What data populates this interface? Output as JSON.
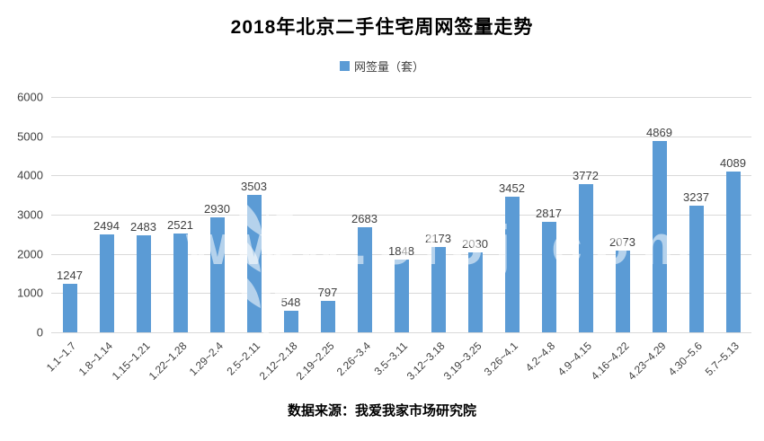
{
  "title": "2018年北京二手住宅周网签量走势",
  "legend": {
    "label": "网签量（套）",
    "color": "#5B9BD5"
  },
  "footer": {
    "text": "数据来源：我爱我家市场研究院"
  },
  "watermark": {
    "text": "www.5i5j.com"
  },
  "colors": {
    "bar": "#5B9BD5",
    "gridline": "#D9D9D9",
    "label_text": "#404040"
  },
  "chart_data": {
    "type": "bar",
    "title": "2018年北京二手住宅周网签量走势",
    "series_name": "网签量（套）",
    "categories": [
      "1.1~1.7",
      "1.8~1.14",
      "1.15~1.21",
      "1.22~1.28",
      "1.29~2.4",
      "2.5~2.11",
      "2.12~2.18",
      "2.19~2.25",
      "2.26~3.4",
      "3.5~3.11",
      "3.12~3.18",
      "3.19~3.25",
      "3.26~4.1",
      "4.2~4.8",
      "4.9~4.15",
      "4.16~4.22",
      "4.23~4.29",
      "4.30~5.6",
      "5.7~5.13"
    ],
    "values": [
      1247,
      2494,
      2483,
      2521,
      2930,
      3503,
      548,
      797,
      2683,
      1848,
      2173,
      2030,
      3452,
      2817,
      3772,
      2073,
      4869,
      3237,
      4089
    ],
    "xlabel": "",
    "ylabel": "",
    "ylim": [
      0,
      6000
    ],
    "yticks": [
      0,
      1000,
      2000,
      3000,
      4000,
      5000,
      6000
    ],
    "grid": true,
    "legend_position": "top",
    "data_labels": true
  }
}
